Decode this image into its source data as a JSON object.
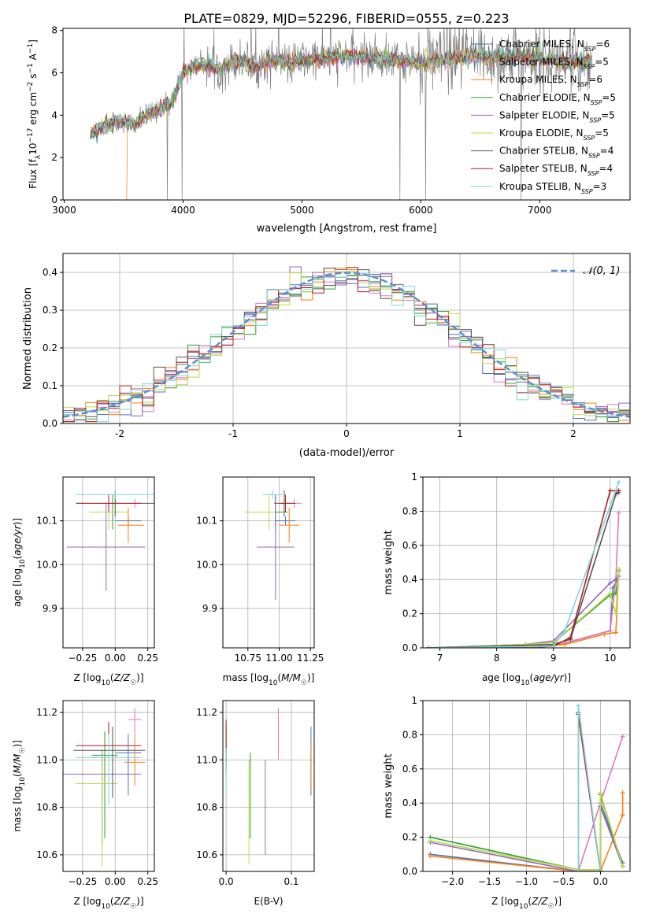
{
  "figure_title": "PLATE=0829, MJD=52296, FIBERID=0555, z=0.223",
  "colors": {
    "Chabrier MILES": "#4c72b0",
    "Salpeter MILES": "#e377c2",
    "Kroupa MILES": "#ff7f0e",
    "Chabrier ELODIE": "#2ca02c",
    "Salpeter ELODIE": "#9467bd",
    "Kroupa ELODIE": "#bcd94a",
    "Chabrier STELIB": "#555555",
    "Salpeter STELIB": "#b21f1f",
    "Kroupa STELIB": "#7fd6d9",
    "data": "#808080",
    "gaussian": "#5b8fd6"
  },
  "chart_data": [
    {
      "id": "spectrum",
      "type": "line",
      "xlabel": "wavelength [Angstrom, rest frame]",
      "ylabel": "Flux [f_λ 10^{-17} erg cm^{-2} s^{-1} A^{-1}]",
      "xlim": [
        2990,
        7760
      ],
      "ylim": [
        0,
        8.1
      ],
      "xticks": [
        3000,
        4000,
        5000,
        6000,
        7000
      ],
      "yticks": [
        0,
        2,
        4,
        6,
        8
      ],
      "legend": [
        "Chabrier MILES, N_SSP=6",
        "Salpeter MILES, N_SSP=5",
        "Kroupa MILES, N_SSP=6",
        "Chabrier ELODIE, N_SSP=5",
        "Salpeter ELODIE, N_SSP=5",
        "Kroupa ELODIE, N_SSP=5",
        "Chabrier STELIB, N_SSP=4",
        "Salpeter STELIB, N_SSP=4",
        "Kroupa STELIB, N_SSP=3"
      ],
      "legend_position": "top-right",
      "grid": false,
      "continuum": {
        "x": [
          3200,
          3300,
          3400,
          3500,
          3600,
          3700,
          3800,
          3900,
          4000,
          4100,
          4200,
          4300,
          4400,
          4500,
          4600,
          4700,
          4800,
          4900,
          5000,
          5200,
          5400,
          5600,
          5800,
          6000,
          6200,
          6400,
          6600,
          6800,
          7000,
          7200,
          7400
        ],
        "y": [
          3.0,
          3.4,
          3.6,
          3.7,
          3.6,
          4.0,
          4.3,
          4.6,
          6.0,
          6.3,
          6.4,
          6.1,
          6.5,
          6.6,
          6.3,
          6.5,
          6.6,
          6.4,
          6.6,
          6.7,
          6.8,
          6.7,
          6.6,
          6.5,
          6.6,
          6.8,
          6.7,
          6.8,
          6.7,
          6.5,
          6.6
        ]
      }
    },
    {
      "id": "residuals",
      "type": "line",
      "xlabel": "(data-model)/error",
      "ylabel": "Normed distribution",
      "xlim": [
        -2.5,
        2.5
      ],
      "ylim": [
        0,
        0.45
      ],
      "xticks": [
        -2,
        -1,
        0,
        1,
        2
      ],
      "yticks": [
        0.0,
        0.1,
        0.2,
        0.3,
        0.4
      ],
      "legend": [
        "𝒩(0, 1)"
      ],
      "legend_position": "top-right",
      "grid": true,
      "gaussian": {
        "mean": 0,
        "sigma": 1
      }
    },
    {
      "id": "age_vs_Z",
      "type": "scatter",
      "xlabel": "Z [log10(Z/Z☉)]",
      "ylabel": "age  [log10(age/yr)]",
      "xlim": [
        -0.4,
        0.3
      ],
      "ylim": [
        9.81,
        10.2
      ],
      "xticks": [
        -0.25,
        0.0,
        0.25
      ],
      "xticklabels": [
        "−0.25",
        "0.00",
        "0.25"
      ],
      "yticks": [
        9.9,
        10.0,
        10.1
      ],
      "grid": true,
      "series": [
        {
          "name": "Chabrier MILES",
          "x": 0.1,
          "xerr": [
            0.1,
            0.1
          ],
          "y": 10.1,
          "yerr": [
            0.01,
            0.01
          ]
        },
        {
          "name": "Salpeter MILES",
          "x": 0.15,
          "xerr": [
            0.05,
            0.05
          ],
          "y": 10.14,
          "yerr": [
            0.01,
            0.01
          ]
        },
        {
          "name": "Kroupa MILES",
          "x": 0.1,
          "xerr": [
            0.08,
            0.12
          ],
          "y": 10.09,
          "yerr": [
            0.04,
            0.04
          ]
        },
        {
          "name": "Chabrier ELODIE",
          "x": -0.02,
          "xerr": [
            0.1,
            0.1
          ],
          "y": 10.12,
          "yerr": [
            0.04,
            0.04
          ]
        },
        {
          "name": "Salpeter ELODIE",
          "x": -0.07,
          "xerr": [
            0.3,
            0.3
          ],
          "y": 10.04,
          "yerr": [
            0.1,
            0.1
          ]
        },
        {
          "name": "Kroupa ELODIE",
          "x": -0.05,
          "xerr": [
            0.15,
            0.15
          ],
          "y": 10.12,
          "yerr": [
            0.04,
            0.04
          ]
        },
        {
          "name": "Chabrier STELIB",
          "x": 0.0,
          "xerr": [
            0.3,
            0.3
          ],
          "y": 10.14,
          "yerr": [
            0.03,
            0.03
          ]
        },
        {
          "name": "Salpeter STELIB",
          "x": -0.05,
          "xerr": [
            0.25,
            0.25
          ],
          "y": 10.14,
          "yerr": [
            0.02,
            0.02
          ]
        },
        {
          "name": "Kroupa STELIB",
          "x": 0.0,
          "xerr": [
            0.3,
            0.3
          ],
          "y": 10.16,
          "yerr": [
            0.01,
            0.01
          ]
        }
      ]
    },
    {
      "id": "age_vs_mass",
      "type": "scatter",
      "xlabel": "mass [log10(M/M☉)]",
      "ylabel": "",
      "xlim": [
        10.55,
        11.28
      ],
      "ylim": [
        9.81,
        10.2
      ],
      "xticks": [
        10.75,
        11.0,
        11.25
      ],
      "xticklabels": [
        "10.75",
        "11.00",
        "11.25"
      ],
      "yticks": [
        9.9,
        10.0,
        10.1
      ],
      "grid": true,
      "series": [
        {
          "name": "Chabrier MILES",
          "x": 11.05,
          "xerr": [
            0.08,
            0.08
          ],
          "y": 10.1,
          "yerr": [
            0.01,
            0.01
          ]
        },
        {
          "name": "Salpeter MILES",
          "x": 11.12,
          "xerr": [
            0.06,
            0.06
          ],
          "y": 10.14,
          "yerr": [
            0.01,
            0.01
          ]
        },
        {
          "name": "Kroupa MILES",
          "x": 11.08,
          "xerr": [
            0.08,
            0.08
          ],
          "y": 10.09,
          "yerr": [
            0.04,
            0.04
          ]
        },
        {
          "name": "Chabrier ELODIE",
          "x": 10.97,
          "xerr": [
            0.1,
            0.1
          ],
          "y": 10.12,
          "yerr": [
            0.04,
            0.04
          ]
        },
        {
          "name": "Salpeter ELODIE",
          "x": 10.97,
          "xerr": [
            0.15,
            0.15
          ],
          "y": 10.04,
          "yerr": [
            0.12,
            0.12
          ]
        },
        {
          "name": "Kroupa ELODIE",
          "x": 10.92,
          "xerr": [
            0.2,
            0.05
          ],
          "y": 10.12,
          "yerr": [
            0.04,
            0.04
          ]
        },
        {
          "name": "Chabrier STELIB",
          "x": 11.04,
          "xerr": [
            0.08,
            0.08
          ],
          "y": 10.14,
          "yerr": [
            0.03,
            0.03
          ]
        },
        {
          "name": "Salpeter STELIB",
          "x": 11.05,
          "xerr": [
            0.05,
            0.08
          ],
          "y": 10.14,
          "yerr": [
            0.02,
            0.02
          ]
        },
        {
          "name": "Kroupa STELIB",
          "x": 10.95,
          "xerr": [
            0.08,
            0.08
          ],
          "y": 10.16,
          "yerr": [
            0.01,
            0.01
          ]
        }
      ]
    },
    {
      "id": "massweight_vs_age",
      "type": "line",
      "xlabel": "age  [log10(age/yr)]",
      "ylabel": "mass weight",
      "xlim": [
        6.7,
        10.35
      ],
      "ylim": [
        0,
        1.0
      ],
      "xticks": [
        7,
        8,
        9,
        10
      ],
      "yticks": [
        0.0,
        0.2,
        0.4,
        0.6,
        0.8,
        1.0
      ],
      "grid": true,
      "series": [
        {
          "name": "Chabrier MILES",
          "x": [
            6.8,
            8.5,
            9.0,
            10.0,
            10.05,
            10.12
          ],
          "y": [
            0.0,
            0.0,
            0.01,
            0.1,
            0.35,
            0.4
          ]
        },
        {
          "name": "Salpeter MILES",
          "x": [
            6.8,
            9.0,
            10.0,
            10.1,
            10.15
          ],
          "y": [
            0.0,
            0.01,
            0.1,
            0.4,
            0.79
          ]
        },
        {
          "name": "Kroupa MILES",
          "x": [
            6.8,
            8.5,
            9.2,
            9.9,
            10.1,
            10.15
          ],
          "y": [
            0.0,
            0.0,
            0.02,
            0.08,
            0.09,
            0.46
          ]
        },
        {
          "name": "Chabrier ELODIE",
          "x": [
            6.8,
            8.5,
            9.0,
            10.0,
            10.1,
            10.15
          ],
          "y": [
            0.0,
            0.02,
            0.03,
            0.31,
            0.32,
            0.45
          ]
        },
        {
          "name": "Salpeter ELODIE",
          "x": [
            6.8,
            8.5,
            9.0,
            10.0,
            10.1,
            10.15
          ],
          "y": [
            0.0,
            0.02,
            0.04,
            0.38,
            0.4,
            0.42
          ]
        },
        {
          "name": "Kroupa ELODIE",
          "x": [
            6.8,
            8.5,
            9.0,
            10.0,
            10.1,
            10.15
          ],
          "y": [
            0.0,
            0.02,
            0.03,
            0.32,
            0.2,
            0.46
          ]
        },
        {
          "name": "Chabrier STELIB",
          "x": [
            6.8,
            9.0,
            9.3,
            10.1,
            10.15
          ],
          "y": [
            0.0,
            0.02,
            0.05,
            0.9,
            0.91
          ]
        },
        {
          "name": "Salpeter STELIB",
          "x": [
            6.8,
            9.0,
            9.3,
            10.0,
            10.15
          ],
          "y": [
            0.0,
            0.01,
            0.06,
            0.92,
            0.92
          ]
        },
        {
          "name": "Kroupa STELIB",
          "x": [
            6.8,
            9.0,
            9.2,
            10.15
          ],
          "y": [
            0.0,
            0.01,
            0.1,
            0.97
          ]
        }
      ]
    },
    {
      "id": "mass_vs_Z",
      "type": "scatter",
      "xlabel": "Z [log10(Z/Z☉)]",
      "ylabel": "mass [log10(M/M☉)]",
      "xlim": [
        -0.4,
        0.3
      ],
      "ylim": [
        10.53,
        11.25
      ],
      "xticks": [
        -0.25,
        0.0,
        0.25
      ],
      "xticklabels": [
        "−0.25",
        "0.00",
        "0.25"
      ],
      "yticks": [
        10.6,
        10.8,
        11.0,
        11.2
      ],
      "grid": true,
      "series": [
        {
          "name": "Chabrier MILES",
          "x": 0.1,
          "xerr": [
            0.1,
            0.1
          ],
          "y": 11.03,
          "yerr": [
            0.18,
            0.08
          ]
        },
        {
          "name": "Salpeter MILES",
          "x": 0.15,
          "xerr": [
            0.05,
            0.05
          ],
          "y": 11.17,
          "yerr": [
            0.08,
            0.05
          ]
        },
        {
          "name": "Kroupa MILES",
          "x": 0.15,
          "xerr": [
            0.08,
            0.08
          ],
          "y": 10.99,
          "yerr": [
            0.1,
            0.1
          ]
        },
        {
          "name": "Chabrier ELODIE",
          "x": -0.08,
          "xerr": [
            0.1,
            0.1
          ],
          "y": 11.02,
          "yerr": [
            0.35,
            0.1
          ]
        },
        {
          "name": "Salpeter ELODIE",
          "x": -0.1,
          "xerr": [
            0.3,
            0.3
          ],
          "y": 10.94,
          "yerr": [
            0.3,
            0.1
          ]
        },
        {
          "name": "Kroupa ELODIE",
          "x": -0.1,
          "xerr": [
            0.2,
            0.12
          ],
          "y": 10.9,
          "yerr": [
            0.35,
            0.12
          ]
        },
        {
          "name": "Chabrier STELIB",
          "x": -0.02,
          "xerr": [
            0.3,
            0.25
          ],
          "y": 11.04,
          "yerr": [
            0.2,
            0.1
          ]
        },
        {
          "name": "Salpeter STELIB",
          "x": -0.05,
          "xerr": [
            0.25,
            0.25
          ],
          "y": 11.06,
          "yerr": [
            0.15,
            0.1
          ]
        },
        {
          "name": "Kroupa STELIB",
          "x": -0.05,
          "xerr": [
            0.25,
            0.25
          ],
          "y": 11.01,
          "yerr": [
            0.2,
            0.1
          ]
        }
      ]
    },
    {
      "id": "mass_vs_ebv",
      "type": "scatter",
      "xlabel": "E(B-V)",
      "ylabel": "",
      "xlim": [
        -0.005,
        0.135
      ],
      "ylim": [
        10.53,
        11.25
      ],
      "xticks": [
        0.0,
        0.1
      ],
      "xticklabels": [
        "0.0",
        "0.1"
      ],
      "yticks": [
        10.6,
        10.8,
        11.0,
        11.2
      ],
      "grid": true,
      "series": [
        {
          "name": "Chabrier MILES",
          "x": 0.13,
          "y": 11.0,
          "yerr": [
            0.15,
            0.14
          ]
        },
        {
          "name": "Salpeter MILES",
          "x": 0.08,
          "y": 11.1,
          "yerr": [
            0.1,
            0.12
          ]
        },
        {
          "name": "Kroupa MILES",
          "x": 0.13,
          "y": 10.97,
          "yerr": [
            0.1,
            0.1
          ]
        },
        {
          "name": "Chabrier ELODIE",
          "x": 0.037,
          "y": 10.85,
          "yerr": [
            0.18,
            0.18
          ]
        },
        {
          "name": "Salpeter ELODIE",
          "x": 0.06,
          "y": 10.8,
          "yerr": [
            0.2,
            0.2
          ]
        },
        {
          "name": "Kroupa ELODIE",
          "x": 0.035,
          "y": 10.8,
          "yerr": [
            0.24,
            0.2
          ]
        },
        {
          "name": "Chabrier STELIB",
          "x": 0.0,
          "y": 11.05,
          "yerr": [
            0.1,
            0.1
          ]
        },
        {
          "name": "Salpeter STELIB",
          "x": 0.0,
          "y": 11.07,
          "yerr": [
            0.1,
            0.1
          ]
        },
        {
          "name": "Kroupa STELIB",
          "x": 0.0,
          "y": 10.95,
          "yerr": [
            0.1,
            0.1
          ]
        }
      ]
    },
    {
      "id": "massweight_vs_Z",
      "type": "line",
      "xlabel": "Z [log10(Z/Z☉)]",
      "ylabel": "mass weight",
      "xlim": [
        -2.4,
        0.4
      ],
      "ylim": [
        0,
        1.0
      ],
      "xticks": [
        -2.0,
        -1.5,
        -1.0,
        -0.5,
        0.0
      ],
      "xticklabels": [
        "−2.0",
        "−1.5",
        "−1.0",
        "−0.5",
        "0.0"
      ],
      "yticks": [
        0.0,
        0.2,
        0.4,
        0.6,
        0.8,
        1.0
      ],
      "grid": true,
      "series": [
        {
          "name": "Chabrier MILES",
          "x": [
            -2.3,
            -0.3,
            0.0,
            0.0,
            0.3
          ],
          "y": [
            0.1,
            0.0,
            0.0,
            0.4,
            0.05
          ]
        },
        {
          "name": "Salpeter MILES",
          "x": [
            -0.3,
            0.0,
            0.3
          ],
          "y": [
            0.0,
            0.4,
            0.79
          ]
        },
        {
          "name": "Kroupa MILES",
          "x": [
            -2.3,
            -0.3,
            0.0,
            0.3,
            0.3
          ],
          "y": [
            0.09,
            0.0,
            0.0,
            0.33,
            0.46
          ]
        },
        {
          "name": "Chabrier ELODIE",
          "x": [
            -2.3,
            -0.3,
            0.0,
            0.0,
            0.3
          ],
          "y": [
            0.2,
            0.01,
            0.01,
            0.45,
            0.03
          ]
        },
        {
          "name": "Salpeter ELODIE",
          "x": [
            -2.3,
            -0.3,
            0.0,
            0.0,
            0.3
          ],
          "y": [
            0.17,
            0.0,
            0.0,
            0.38,
            0.03
          ]
        },
        {
          "name": "Kroupa ELODIE",
          "x": [
            -2.3,
            -0.3,
            0.0,
            0.0,
            0.3
          ],
          "y": [
            0.18,
            0.01,
            0.01,
            0.46,
            0.03
          ]
        },
        {
          "name": "Chabrier STELIB",
          "x": [
            -0.3,
            -0.3,
            0.0
          ],
          "y": [
            0.0,
            0.93,
            0.0
          ]
        },
        {
          "name": "Salpeter STELIB",
          "x": [
            -0.3,
            -0.3,
            0.0
          ],
          "y": [
            0.0,
            0.92,
            0.0
          ]
        },
        {
          "name": "Kroupa STELIB",
          "x": [
            -0.3,
            -0.3,
            0.0
          ],
          "y": [
            0.0,
            0.97,
            0.0
          ]
        }
      ]
    }
  ]
}
